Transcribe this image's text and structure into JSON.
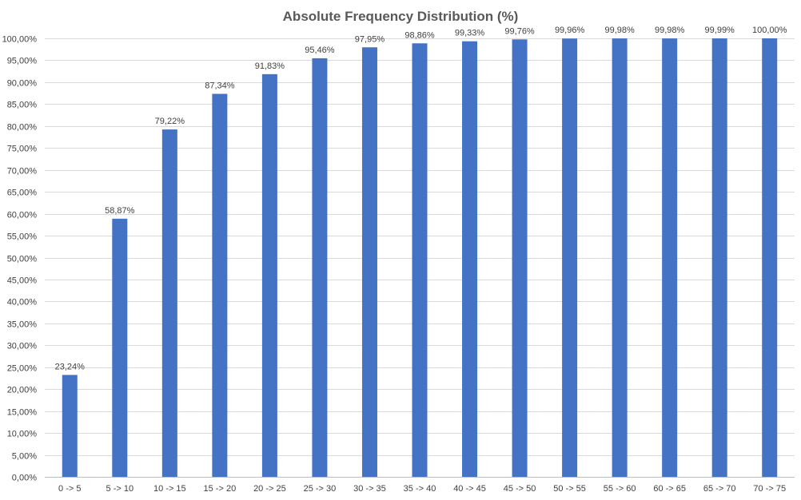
{
  "chart_data": {
    "type": "bar",
    "title": "Absolute Frequency Distribution (%)",
    "xlabel": "",
    "ylabel": "",
    "categories": [
      "0 -> 5",
      "5 -> 10",
      "10 -> 15",
      "15 -> 20",
      "20 -> 25",
      "25 -> 30",
      "30 -> 35",
      "35 -> 40",
      "40 -> 45",
      "45 -> 50",
      "50 -> 55",
      "55 -> 60",
      "60 -> 65",
      "65 -> 70",
      "70 -> 75"
    ],
    "values": [
      23.24,
      58.87,
      79.22,
      87.34,
      91.83,
      95.46,
      97.95,
      98.86,
      99.33,
      99.76,
      99.96,
      99.98,
      99.98,
      99.99,
      100.0
    ],
    "data_labels": [
      "23,24%",
      "58,87%",
      "79,22%",
      "87,34%",
      "91,83%",
      "95,46%",
      "97,95%",
      "98,86%",
      "99,33%",
      "99,76%",
      "99,96%",
      "99,98%",
      "99,98%",
      "99,99%",
      "100,00%"
    ],
    "ylim": [
      0,
      100
    ],
    "y_ticks": [
      0,
      5,
      10,
      15,
      20,
      25,
      30,
      35,
      40,
      45,
      50,
      55,
      60,
      65,
      70,
      75,
      80,
      85,
      90,
      95,
      100
    ],
    "y_tick_labels": [
      "0,00%",
      "5,00%",
      "10,00%",
      "15,00%",
      "20,00%",
      "25,00%",
      "30,00%",
      "35,00%",
      "40,00%",
      "45,00%",
      "50,00%",
      "55,00%",
      "60,00%",
      "65,00%",
      "70,00%",
      "75,00%",
      "80,00%",
      "85,00%",
      "90,00%",
      "95,00%",
      "100,00%"
    ],
    "grid": true,
    "legend": "none",
    "bar_color": "#4472c4"
  }
}
